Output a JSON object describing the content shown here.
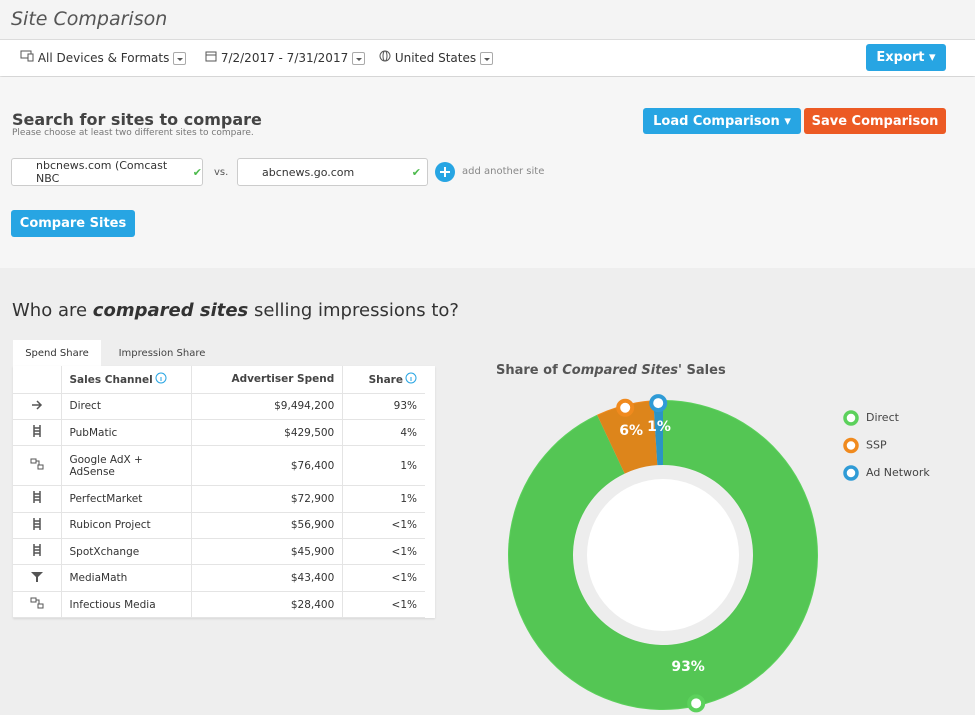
{
  "header": {
    "title": "Site Comparison"
  },
  "toolbar": {
    "devices": "All Devices & Formats",
    "dates": "7/2/2017 - 7/31/2017",
    "country": "United States",
    "export": "Export"
  },
  "search": {
    "title": "Search for sites to compare",
    "subtitle": "Please choose at least two different sites to compare.",
    "load": "Load Comparison",
    "save": "Save Comparison",
    "site1": "nbcnews.com (Comcast NBC",
    "vs": "vs.",
    "site2": "abcnews.go.com",
    "add": "add another site",
    "compare": "Compare Sites"
  },
  "section": {
    "title": [
      "Who are",
      "compared sites",
      "selling impressions to?"
    ]
  },
  "tabs": [
    "Spend Share",
    "Impression Share"
  ],
  "table": {
    "columns": [
      "Sales Channel",
      "Advertiser Spend",
      "Share"
    ],
    "rows": [
      [
        "Direct",
        "$9,494,200",
        "93%"
      ],
      [
        "PubMatic",
        "$429,500",
        "4%"
      ],
      [
        "Google AdX + AdSense",
        "$76,400",
        "1%"
      ],
      [
        "PerfectMarket",
        "$72,900",
        "1%"
      ],
      [
        "Rubicon Project",
        "$56,900",
        "<1%"
      ],
      [
        "SpotXchange",
        "$45,900",
        "<1%"
      ],
      [
        "MediaMath",
        "$43,400",
        "<1%"
      ],
      [
        "Infectious Media",
        "$28,400",
        "<1%"
      ]
    ]
  },
  "chart_data": {
    "type": "donut",
    "title": [
      "Share of",
      "Compared Sites'",
      "Sales"
    ],
    "categories": [
      "Direct",
      "SSP",
      "Ad Network"
    ],
    "values": [
      93,
      6,
      1
    ],
    "value_labels": [
      "93%",
      "6%",
      "1%"
    ],
    "colors": [
      "#5cd15c",
      "#f08a1e",
      "#2f9bd6"
    ]
  }
}
